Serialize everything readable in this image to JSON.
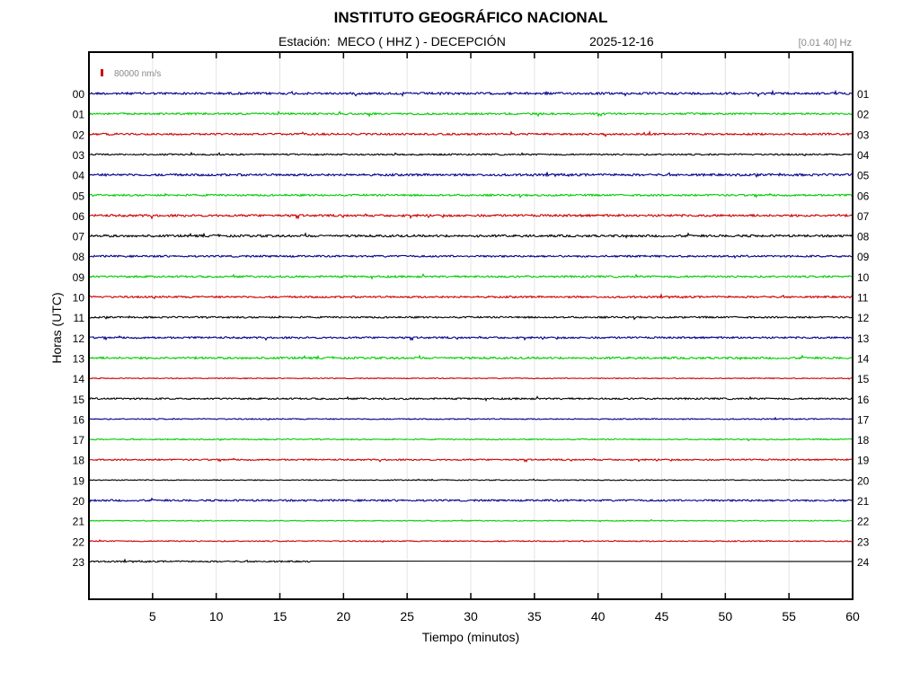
{
  "header": {
    "title": "INSTITUTO GEOGRÁFICO NACIONAL",
    "station": "Estación:  MECO ( HHZ ) - DECEPCIÓN",
    "date": "2025-12-16",
    "band": "[0.01 40] Hz"
  },
  "chart_data": {
    "type": "line",
    "title": "INSTITUTO GEOGRÁFICO NACIONAL",
    "xlabel": "Tiempo (minutos)",
    "ylabel": "Horas (UTC)",
    "xlim": [
      0,
      60
    ],
    "x_ticks": [
      "5",
      "10",
      "15",
      "20",
      "25",
      "30",
      "35",
      "40",
      "45",
      "50",
      "55",
      "60"
    ],
    "left_hour_labels": [
      "00",
      "01",
      "02",
      "03",
      "04",
      "05",
      "06",
      "07",
      "08",
      "09",
      "10",
      "11",
      "12",
      "13",
      "14",
      "15",
      "16",
      "17",
      "18",
      "19",
      "20",
      "21",
      "22",
      "23"
    ],
    "right_hour_labels": [
      "01",
      "02",
      "03",
      "04",
      "05",
      "06",
      "07",
      "08",
      "09",
      "10",
      "11",
      "12",
      "13",
      "14",
      "15",
      "16",
      "17",
      "18",
      "19",
      "20",
      "21",
      "22",
      "23",
      "24"
    ],
    "scale_label": "80000 nm/s",
    "grid": true,
    "trace_colors": [
      "#00008b",
      "#00cc00",
      "#cc0000",
      "#000000"
    ],
    "scale_color": "#cc0000",
    "last_trace_end_minute": 17.5,
    "traces": [
      {
        "hour": "00",
        "color": "#00008b",
        "amplitude": 1.2
      },
      {
        "hour": "01",
        "color": "#00cc00",
        "amplitude": 1.0
      },
      {
        "hour": "02",
        "color": "#cc0000",
        "amplitude": 1.0
      },
      {
        "hour": "03",
        "color": "#000000",
        "amplitude": 0.8
      },
      {
        "hour": "04",
        "color": "#00008b",
        "amplitude": 1.2
      },
      {
        "hour": "05",
        "color": "#00cc00",
        "amplitude": 1.0
      },
      {
        "hour": "06",
        "color": "#cc0000",
        "amplitude": 1.2
      },
      {
        "hour": "07",
        "color": "#000000",
        "amplitude": 1.2
      },
      {
        "hour": "08",
        "color": "#00008b",
        "amplitude": 1.0
      },
      {
        "hour": "09",
        "color": "#00cc00",
        "amplitude": 1.0
      },
      {
        "hour": "10",
        "color": "#cc0000",
        "amplitude": 1.0
      },
      {
        "hour": "11",
        "color": "#000000",
        "amplitude": 0.9
      },
      {
        "hour": "12",
        "color": "#00008b",
        "amplitude": 1.0
      },
      {
        "hour": "13",
        "color": "#00cc00",
        "amplitude": 1.1
      },
      {
        "hour": "14",
        "color": "#cc0000",
        "amplitude": 0.5
      },
      {
        "hour": "15",
        "color": "#000000",
        "amplitude": 0.9
      },
      {
        "hour": "16",
        "color": "#00008b",
        "amplitude": 0.6
      },
      {
        "hour": "17",
        "color": "#00cc00",
        "amplitude": 0.6
      },
      {
        "hour": "18",
        "color": "#cc0000",
        "amplitude": 0.8
      },
      {
        "hour": "19",
        "color": "#000000",
        "amplitude": 0.5
      },
      {
        "hour": "20",
        "color": "#00008b",
        "amplitude": 1.0
      },
      {
        "hour": "21",
        "color": "#00cc00",
        "amplitude": 0.5
      },
      {
        "hour": "22",
        "color": "#cc0000",
        "amplitude": 0.6
      },
      {
        "hour": "23",
        "color": "#000000",
        "amplitude": 0.8
      }
    ]
  }
}
